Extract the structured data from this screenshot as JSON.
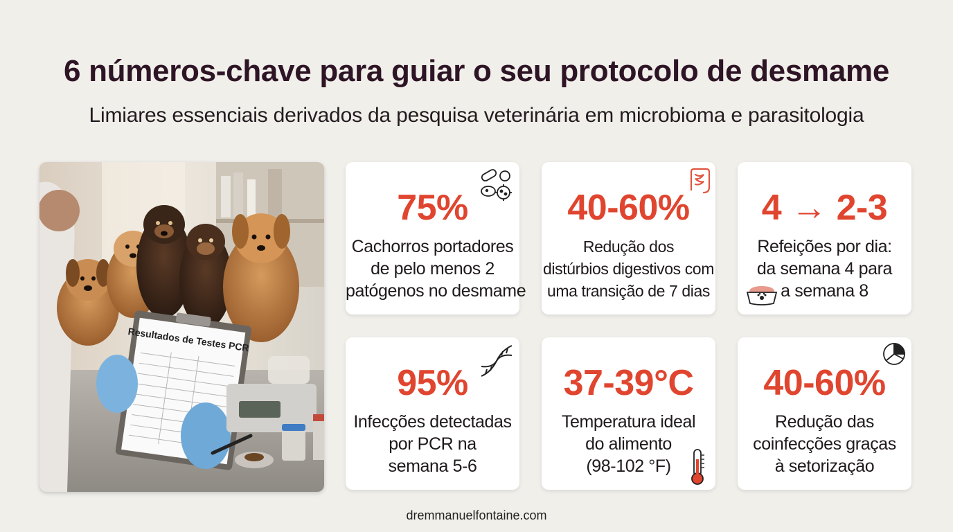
{
  "title": "6 números-chave para guiar o seu protocolo de desmame",
  "subtitle": "Limiares essenciais derivados da pesquisa veterinária em microbioma e parasitologia",
  "photo": {
    "clipboard_title": "Resultados de Testes PCR"
  },
  "cards": [
    {
      "value": "75%",
      "lines": [
        "Cachorros portadores",
        "de pelo menos 2",
        "patógenos no desmame"
      ],
      "icon": "bacteria-icon"
    },
    {
      "value": "40-60%",
      "lines": [
        "Redução dos",
        "distúrbios digestivos com",
        "uma transição de 7 dias"
      ],
      "icon": "intestine-icon"
    },
    {
      "value": "4 → 2-3",
      "lines": [
        "Refeições por dia:",
        "da semana 4 para",
        "a semana 8"
      ],
      "icon": "food-bowl-icon"
    },
    {
      "value": "95%",
      "lines": [
        "Infecções detectadas",
        "por PCR na",
        "semana 5-6"
      ],
      "icon": "dna-icon"
    },
    {
      "value": "37-39°C",
      "lines": [
        "Temperatura ideal",
        "do alimento",
        "(98-102 °F)"
      ],
      "icon": "thermometer-icon"
    },
    {
      "value": "40-60%",
      "lines": [
        "Redução das",
        "coinfecções graças",
        "à setorização"
      ],
      "icon": "pie-chart-icon"
    }
  ],
  "footer": "dremmanuelfontaine.com",
  "colors": {
    "accent": "#e0452f",
    "title": "#2e1526",
    "background": "#f1efea"
  }
}
